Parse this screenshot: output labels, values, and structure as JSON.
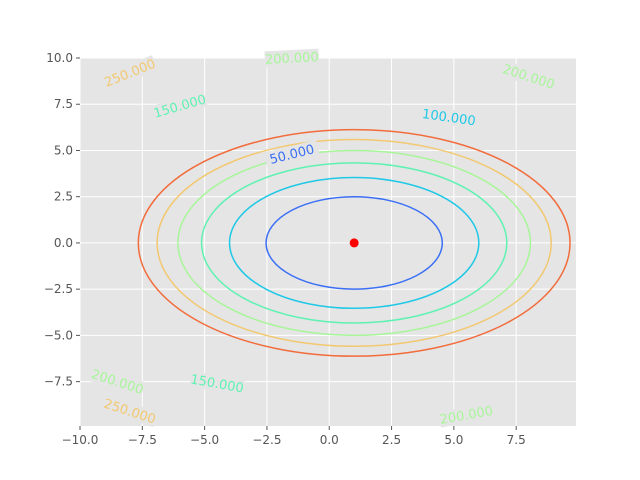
{
  "chart_data": {
    "type": "contour",
    "title": "",
    "xlabel": "",
    "ylabel": "",
    "xlim": [
      -10,
      9.9
    ],
    "ylim": [
      -9.9,
      10
    ],
    "grid": true,
    "background": "#e5e5e5",
    "function": "z = 4*(x-1)^2 + 8*y^2",
    "x_ticks": [
      -10.0,
      -7.5,
      -5.0,
      -2.5,
      0.0,
      2.5,
      5.0,
      7.5
    ],
    "x_tick_labels": [
      "−10.0",
      "−7.5",
      "−5.0",
      "−2.5",
      "0.0",
      "2.5",
      "5.0",
      "7.5"
    ],
    "y_ticks": [
      10.0,
      7.5,
      5.0,
      2.5,
      0.0,
      -2.5,
      -5.0,
      -7.5
    ],
    "y_tick_labels": [
      "10.0",
      "7.5",
      "5.0",
      "2.5",
      "0.0",
      "−2.5",
      "−5.0",
      "−7.5"
    ],
    "levels": [
      {
        "value": 50,
        "color": "#3a6ff5"
      },
      {
        "value": 100,
        "color": "#1ec8e6"
      },
      {
        "value": 150,
        "color": "#5ef2b2"
      },
      {
        "value": 200,
        "color": "#a8f59a"
      },
      {
        "value": 250,
        "color": "#f2c870"
      },
      {
        "value": 300,
        "color": "#f26c3c"
      }
    ],
    "contour_labels": [
      {
        "text": "50.000",
        "level": 50,
        "at": [
          -1.5,
          4.8
        ],
        "angle": -14
      },
      {
        "text": "100.000",
        "level": 100,
        "at": [
          4.8,
          6.8
        ],
        "angle": 8
      },
      {
        "text": "150.000",
        "level": 150,
        "at": [
          -6.0,
          7.4
        ],
        "angle": -16
      },
      {
        "text": "150.000",
        "level": 150,
        "at": [
          -4.5,
          -7.6
        ],
        "angle": 10
      },
      {
        "text": "200.000",
        "level": 200,
        "at": [
          -1.5,
          10.0
        ],
        "angle": -3
      },
      {
        "text": "200.000",
        "level": 200,
        "at": [
          8.0,
          9.0
        ],
        "angle": 18
      },
      {
        "text": "200.000",
        "level": 200,
        "at": [
          -8.5,
          -7.5
        ],
        "angle": 18
      },
      {
        "text": "200.000",
        "level": 200,
        "at": [
          5.5,
          -9.3
        ],
        "angle": -10
      },
      {
        "text": "250.000",
        "level": 250,
        "at": [
          -8.0,
          9.2
        ],
        "angle": -22
      },
      {
        "text": "250.000",
        "level": 250,
        "at": [
          -8.0,
          -9.1
        ],
        "angle": 18
      }
    ],
    "minimum_point": {
      "x": 1,
      "y": 0,
      "color": "#ff0000"
    }
  }
}
